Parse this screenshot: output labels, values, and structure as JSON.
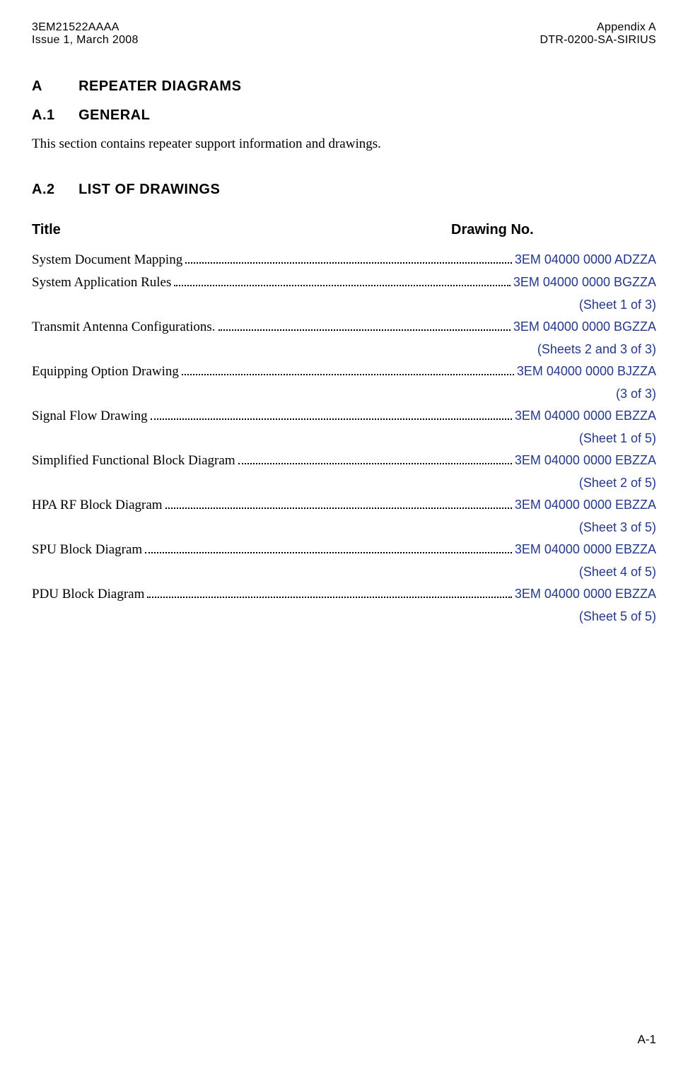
{
  "header": {
    "left_line1": "3EM21522AAAA",
    "left_line2": "Issue 1, March 2008",
    "right_line1": "Appendix A",
    "right_line2": "DTR-0200-SA-SIRIUS"
  },
  "sections": {
    "a": {
      "num": "A",
      "title": "REPEATER DIAGRAMS"
    },
    "a1": {
      "num": "A.1",
      "title": "GENERAL",
      "body": "This section contains repeater support information and drawings."
    },
    "a2": {
      "num": "A.2",
      "title": "LIST OF DRAWINGS"
    }
  },
  "table": {
    "col_title": "Title",
    "col_drawing": "Drawing No."
  },
  "entries": [
    {
      "title": "System Document Mapping",
      "drawing": "3EM 04000 0000 ADZZA",
      "sheet": ""
    },
    {
      "title": "System Application Rules ",
      "drawing": " 3EM 04000 0000 BGZZA",
      "sheet": "(Sheet 1 of 3)"
    },
    {
      "title": "Transmit Antenna Configurations. ",
      "drawing": " 3EM 04000 0000 BGZZA",
      "sheet": "(Sheets 2 and 3 of 3)"
    },
    {
      "title": "Equipping Option Drawing",
      "drawing": " 3EM 04000 0000 BJZZA",
      "sheet": "(3 of 3)"
    },
    {
      "title": "Signal Flow Drawing",
      "drawing": "3EM 04000 0000 EBZZA",
      "sheet": "(Sheet 1 of 5)"
    },
    {
      "title": "Simplified Functional Block Diagram",
      "drawing": "3EM 04000 0000 EBZZA",
      "sheet": "(Sheet 2 of 5)"
    },
    {
      "title": "HPA RF Block Diagram ",
      "drawing": "3EM 04000 0000 EBZZA",
      "sheet": "(Sheet 3 of 5)"
    },
    {
      "title": "SPU Block Diagram ",
      "drawing": "3EM 04000 0000 EBZZA",
      "sheet": "(Sheet 4 of 5)"
    },
    {
      "title": "PDU Block Diagram",
      "drawing": "3EM 04000 0000 EBZZA",
      "sheet": "(Sheet 5 of 5)"
    }
  ],
  "page_number": "A-1",
  "colors": {
    "link": "#24388c",
    "text": "#000000",
    "background": "#ffffff"
  }
}
